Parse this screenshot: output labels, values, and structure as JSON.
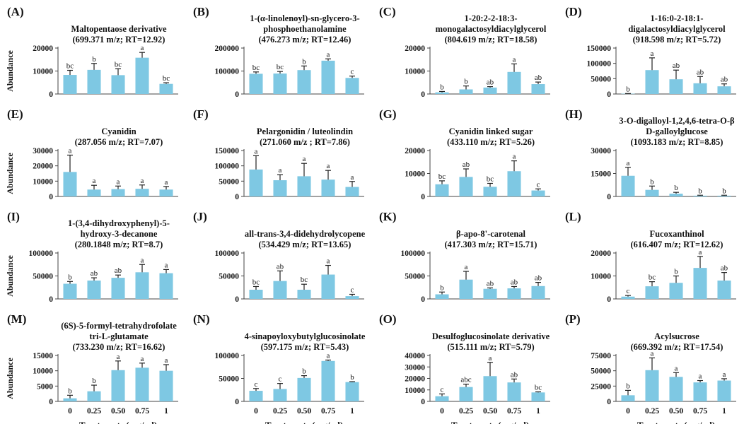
{
  "colors": {
    "bar": "#7ec8e3",
    "axis": "#444444",
    "text": "#111111"
  },
  "chart_data": [
    {
      "label": "(A)",
      "title": [
        "Maltopentaose derivative",
        "(699.371 m/z; RT=12.92)"
      ],
      "type": "bar",
      "categories": [
        "0",
        "0.25",
        "0.50",
        "0.75",
        "1"
      ],
      "values": [
        8300,
        10500,
        8200,
        15800,
        4400
      ],
      "errors": [
        2000,
        2800,
        2800,
        2300,
        500
      ],
      "letters": [
        "bc",
        "b",
        "bc",
        "a",
        "bc"
      ],
      "ylim": [
        0,
        20000
      ],
      "yticks": [
        "0",
        "10000",
        "20000"
      ],
      "ylabel": "Abundance",
      "xlabel": ""
    },
    {
      "label": "(B)",
      "title": [
        "1-(α-linolenoyl)-sn-glycero-3-",
        "phosphoethanolamine",
        "(476.273  m/z; RT=12.46)"
      ],
      "type": "bar",
      "categories": [
        "0",
        "0.25",
        "0.50",
        "0.75",
        "1"
      ],
      "values": [
        88000,
        89000,
        104000,
        145000,
        70000
      ],
      "errors": [
        8000,
        9000,
        18000,
        8000,
        8000
      ],
      "letters": [
        "bc",
        "bc",
        "b",
        "a",
        "c"
      ],
      "ylim": [
        0,
        200000
      ],
      "yticks": [
        "0",
        "100000",
        "200000"
      ],
      "ylabel": "",
      "xlabel": ""
    },
    {
      "label": "(C)",
      "title": [
        "1-20:2-2-18:3-",
        "monogalactosyldiacylglycerol",
        "(804.619 m/z; RT=18.58)"
      ],
      "type": "bar",
      "categories": [
        "0",
        "0.25",
        "0.50",
        "0.75",
        "1"
      ],
      "values": [
        700,
        2000,
        2800,
        9600,
        4300
      ],
      "errors": [
        400,
        1500,
        400,
        3500,
        900
      ],
      "letters": [
        "b",
        "b",
        "ab",
        "a",
        "ab"
      ],
      "ylim": [
        0,
        20000
      ],
      "yticks": [
        "0",
        "10000",
        "20000"
      ],
      "ylabel": "",
      "xlabel": ""
    },
    {
      "label": "(D)",
      "title": [
        "1-16:0-2-18:1-",
        "digalactosyldiacylglycerol",
        "(918.598 m/z; RT=5.72)"
      ],
      "type": "bar",
      "categories": [
        "0",
        "0.25",
        "0.50",
        "0.75",
        "1"
      ],
      "values": [
        1000,
        78000,
        48000,
        35000,
        25000
      ],
      "errors": [
        500,
        40000,
        30000,
        22000,
        8000
      ],
      "letters": [
        "b",
        "a",
        "ab",
        "ab",
        "ab"
      ],
      "ylim": [
        0,
        150000
      ],
      "yticks": [
        "0",
        "50000",
        "100000",
        "150000"
      ],
      "ylabel": "",
      "xlabel": ""
    },
    {
      "label": "(E)",
      "title": [
        "Cyanidin",
        "(287.056 m/z; RT=7.07)"
      ],
      "type": "bar",
      "categories": [
        "0",
        "0.25",
        "0.50",
        "0.75",
        "1"
      ],
      "values": [
        16000,
        4500,
        4800,
        5000,
        4500
      ],
      "errors": [
        11000,
        2800,
        2000,
        2500,
        2000
      ],
      "letters": [
        "a",
        "a",
        "a",
        "a",
        "a"
      ],
      "ylim": [
        0,
        30000
      ],
      "yticks": [
        "0",
        "10000",
        "20000",
        "30000"
      ],
      "ylabel": "Abundance",
      "xlabel": ""
    },
    {
      "label": "(F)",
      "title": [
        "Pelargonidin / luteolindin",
        "(271.060 m/z ; RT=7.86)"
      ],
      "type": "bar",
      "categories": [
        "0",
        "0.25",
        "0.50",
        "0.75",
        "1"
      ],
      "values": [
        88000,
        53000,
        66000,
        55000,
        31000
      ],
      "errors": [
        45000,
        18000,
        42000,
        30000,
        18000
      ],
      "letters": [
        "a",
        "a",
        "a",
        "a",
        "a"
      ],
      "ylim": [
        0,
        150000
      ],
      "yticks": [
        "0",
        "50000",
        "100000",
        "150000"
      ],
      "ylabel": "",
      "xlabel": ""
    },
    {
      "label": "(G)",
      "title": [
        "Cyanidin linked sugar",
        "(433.110 m/z; RT=5.26)"
      ],
      "type": "bar",
      "categories": [
        "0",
        "0.25",
        "0.50",
        "0.75",
        "1"
      ],
      "values": [
        5300,
        8500,
        4200,
        11000,
        2600
      ],
      "errors": [
        1500,
        3500,
        1500,
        4500,
        700
      ],
      "letters": [
        "bc",
        "ab",
        "bc",
        "a",
        "c"
      ],
      "ylim": [
        0,
        20000
      ],
      "yticks": [
        "0",
        "10000",
        "20000"
      ],
      "ylabel": "",
      "xlabel": ""
    },
    {
      "label": "(H)",
      "title": [
        "3-O-digalloyl-1,2,4,6-tetra-O-β",
        "D-galloylglucose",
        "(1093.183 m/z; RT=8.85)"
      ],
      "type": "bar",
      "categories": [
        "0",
        "0.25",
        "0.50",
        "0.75",
        "1"
      ],
      "values": [
        13500,
        4300,
        1800,
        500,
        500
      ],
      "errors": [
        5500,
        2500,
        900,
        300,
        300
      ],
      "letters": [
        "a",
        "b",
        "b",
        "b",
        "b"
      ],
      "ylim": [
        0,
        30000
      ],
      "yticks": [
        "0",
        "15000",
        "30000"
      ],
      "ylabel": "",
      "xlabel": ""
    },
    {
      "label": "(I)",
      "title": [
        "1-(3,4-dihydroxyphenyl)-5-",
        "hydroxy-3-decanone",
        "(280.1848  m/z; RT=8.7)"
      ],
      "type": "bar",
      "categories": [
        "0",
        "0.25",
        "0.50",
        "0.75",
        "1"
      ],
      "values": [
        33000,
        40000,
        46000,
        58000,
        56000
      ],
      "errors": [
        5000,
        6000,
        6000,
        17000,
        8000
      ],
      "letters": [
        "b",
        "ab",
        "ab",
        "a",
        "a"
      ],
      "ylim": [
        0,
        100000
      ],
      "yticks": [
        "0",
        "50000",
        "100000"
      ],
      "ylabel": "Abundance",
      "xlabel": ""
    },
    {
      "label": "(J)",
      "title": [
        "all-trans-3,4-didehydrolycopene",
        "(534.429 m/z; RT=13.65)"
      ],
      "type": "bar",
      "categories": [
        "0",
        "0.25",
        "0.50",
        "0.75",
        "1"
      ],
      "values": [
        20000,
        39000,
        20000,
        53000,
        6000
      ],
      "errors": [
        7000,
        22000,
        12000,
        20000,
        4000
      ],
      "letters": [
        "bc",
        "ab",
        "bc",
        "a",
        "c"
      ],
      "ylim": [
        0,
        100000
      ],
      "yticks": [
        "0",
        "50000",
        "100000"
      ],
      "ylabel": "",
      "xlabel": ""
    },
    {
      "label": "(K)",
      "title": [
        "β-apo-8'-carotenal",
        "(417.303 m/z; RT=15.71)"
      ],
      "type": "bar",
      "categories": [
        "0",
        "0.25",
        "0.50",
        "0.75",
        "1"
      ],
      "values": [
        10000,
        42000,
        22000,
        23000,
        28000
      ],
      "errors": [
        5000,
        18000,
        2000,
        4000,
        8000
      ],
      "letters": [
        "b",
        "a",
        "ab",
        "ab",
        "ab"
      ],
      "ylim": [
        0,
        100000
      ],
      "yticks": [
        "0",
        "50000",
        "100000"
      ],
      "ylabel": "",
      "xlabel": ""
    },
    {
      "label": "(L)",
      "title": [
        "Fucoxanthinol",
        "(616.407 m/z; RT=12.62)"
      ],
      "type": "bar",
      "categories": [
        "0",
        "0.25",
        "0.50",
        "0.75",
        "1"
      ],
      "values": [
        1000,
        5500,
        7000,
        13500,
        8000
      ],
      "errors": [
        500,
        2000,
        3000,
        5000,
        3500
      ],
      "letters": [
        "c",
        "bc",
        "b",
        "a",
        "ab"
      ],
      "ylim": [
        0,
        20000
      ],
      "yticks": [
        "0",
        "10000",
        "20000"
      ],
      "ylabel": "",
      "xlabel": ""
    },
    {
      "label": "(M)",
      "title": [
        "(6S)-5-formyl-tetrahydrofolate",
        "tri-L-glutamate",
        "(733.230 m/z; RT=16.62)"
      ],
      "type": "bar",
      "categories": [
        "0",
        "0.25",
        "0.50",
        "0.75",
        "1"
      ],
      "values": [
        1000,
        3300,
        10200,
        11000,
        10000
      ],
      "errors": [
        1000,
        2000,
        3000,
        1500,
        2000
      ],
      "letters": [
        "b",
        "b",
        "a",
        "a",
        "a"
      ],
      "ylim": [
        0,
        15000
      ],
      "yticks": [
        "0",
        "5000",
        "10000",
        "15000"
      ],
      "ylabel": "Abundance",
      "xlabel": "Treatments (mg/ml)"
    },
    {
      "label": "(N)",
      "title": [
        "4-sinapoyloxybutylglucosinolate",
        "(597.175 m/z; RT=5.43)"
      ],
      "type": "bar",
      "categories": [
        "0",
        "0.25",
        "0.50",
        "0.75",
        "1"
      ],
      "values": [
        23000,
        27000,
        51000,
        88000,
        42000
      ],
      "errors": [
        5000,
        12000,
        5000,
        2000,
        1000
      ],
      "letters": [
        "c",
        "c",
        "b",
        "a",
        "b"
      ],
      "ylim": [
        0,
        100000
      ],
      "yticks": [
        "0",
        "50000",
        "100000"
      ],
      "ylabel": "",
      "xlabel": "Treatments (mg/ml)"
    },
    {
      "label": "(O)",
      "title": [
        "Desulfoglucosinolate derivative",
        "(515.111 m/z; RT=5.79)"
      ],
      "type": "bar",
      "categories": [
        "0",
        "0.25",
        "0.50",
        "0.75",
        "1"
      ],
      "values": [
        4500,
        12500,
        22000,
        16500,
        7800
      ],
      "errors": [
        2000,
        2500,
        12000,
        3000,
        500
      ],
      "letters": [
        "c",
        "abc",
        "a",
        "ab",
        "bc"
      ],
      "ylim": [
        0,
        40000
      ],
      "yticks": [
        "0",
        "10000",
        "20000",
        "30000",
        "40000"
      ],
      "ylabel": "",
      "xlabel": "Treatments (mg/ml)"
    },
    {
      "label": "(P)",
      "title": [
        "Acylsucrose",
        "(669.392 m/z; RT=17.54)"
      ],
      "type": "bar",
      "categories": [
        "0",
        "0.25",
        "0.50",
        "0.75",
        "1"
      ],
      "values": [
        10000,
        51000,
        40000,
        31000,
        34000
      ],
      "errors": [
        8000,
        20000,
        7000,
        3000,
        3000
      ],
      "letters": [
        "b",
        "a",
        "a",
        "a",
        "a"
      ],
      "ylim": [
        0,
        75000
      ],
      "yticks": [
        "0",
        "25000",
        "50000",
        "75000"
      ],
      "ylabel": "",
      "xlabel": "Treatments (mg/ml)"
    }
  ]
}
